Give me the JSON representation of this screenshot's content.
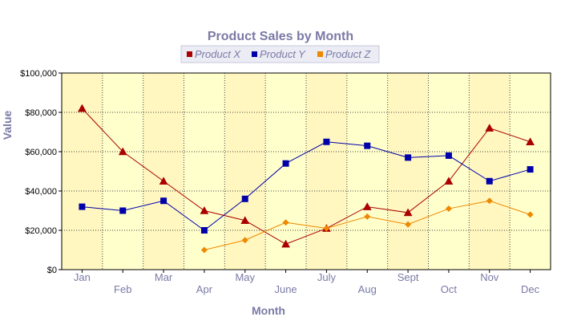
{
  "chart_data": {
    "type": "line",
    "title": "Product Sales by Month",
    "xlabel": "Month",
    "ylabel": "Value",
    "categories": [
      "Jan",
      "Feb",
      "Mar",
      "Apr",
      "May",
      "June",
      "July",
      "Aug",
      "Sept",
      "Oct",
      "Nov",
      "Dec"
    ],
    "ylim": [
      0,
      100000
    ],
    "yticks": [
      0,
      20000,
      40000,
      60000,
      80000,
      100000
    ],
    "ytick_labels": [
      "$0",
      "$20,000",
      "$40,000",
      "$60,000",
      "$80,000",
      "$100,000"
    ],
    "grid": true,
    "legend_position": "top-center",
    "plot_background": "#ffffcc",
    "series": [
      {
        "name": "Product X",
        "color": "#aa0000",
        "marker": "triangle",
        "values": [
          82000,
          60000,
          45000,
          30000,
          25000,
          13000,
          21000,
          32000,
          29000,
          45000,
          72000,
          65000
        ]
      },
      {
        "name": "Product Y",
        "color": "#0000aa",
        "marker": "square",
        "values": [
          32000,
          30000,
          35000,
          20000,
          36000,
          54000,
          65000,
          63000,
          57000,
          58000,
          45000,
          51000
        ]
      },
      {
        "name": "Product Z",
        "color": "#ee8800",
        "marker": "diamond",
        "values": [
          null,
          null,
          null,
          10000,
          15000,
          24000,
          21000,
          27000,
          23000,
          31000,
          35000,
          28000
        ]
      }
    ]
  }
}
